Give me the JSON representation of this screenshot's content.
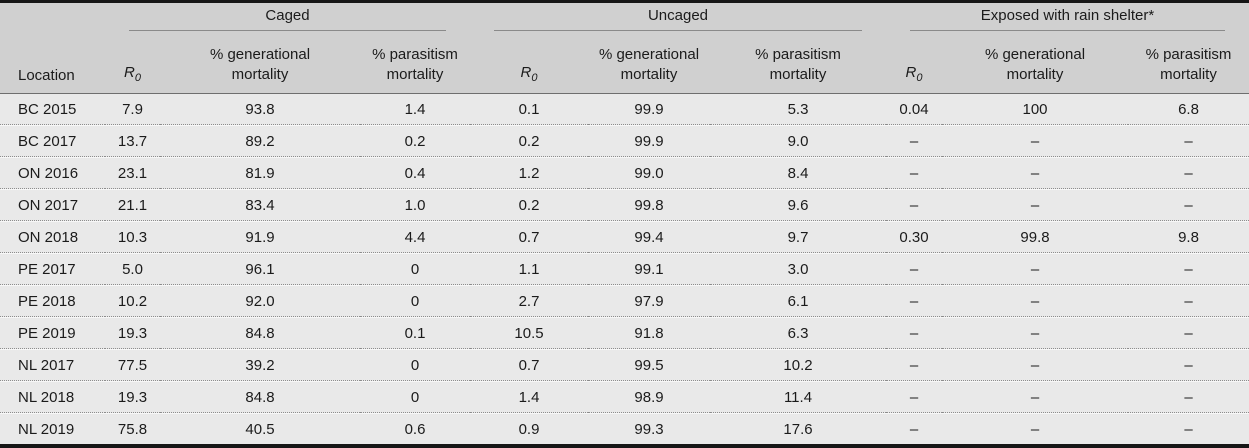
{
  "table": {
    "location_header": "Location",
    "r0_label": {
      "base": "R",
      "sub": "0"
    },
    "groups": [
      {
        "label": "Caged"
      },
      {
        "label": "Uncaged"
      },
      {
        "label": "Exposed with rain shelter*"
      }
    ],
    "subheaders": {
      "gen_line1": "% generational",
      "gen_line2": "mortality",
      "para_line1": "% parasitism",
      "para_line2": "mortality"
    },
    "rows": [
      {
        "location": "BC 2015",
        "caged": [
          "7.9",
          "93.8",
          "1.4"
        ],
        "uncaged": [
          "0.1",
          "99.9",
          "5.3"
        ],
        "exposed": [
          "0.04",
          "100",
          "6.8"
        ]
      },
      {
        "location": "BC 2017",
        "caged": [
          "13.7",
          "89.2",
          "0.2"
        ],
        "uncaged": [
          "0.2",
          "99.9",
          "9.0"
        ],
        "exposed": [
          "–",
          "–",
          "–"
        ]
      },
      {
        "location": "ON 2016",
        "caged": [
          "23.1",
          "81.9",
          "0.4"
        ],
        "uncaged": [
          "1.2",
          "99.0",
          "8.4"
        ],
        "exposed": [
          "–",
          "–",
          "–"
        ]
      },
      {
        "location": "ON 2017",
        "caged": [
          "21.1",
          "83.4",
          "1.0"
        ],
        "uncaged": [
          "0.2",
          "99.8",
          "9.6"
        ],
        "exposed": [
          "–",
          "–",
          "–"
        ]
      },
      {
        "location": "ON 2018",
        "caged": [
          "10.3",
          "91.9",
          "4.4"
        ],
        "uncaged": [
          "0.7",
          "99.4",
          "9.7"
        ],
        "exposed": [
          "0.30",
          "99.8",
          "9.8"
        ]
      },
      {
        "location": "PE 2017",
        "caged": [
          "5.0",
          "96.1",
          "0"
        ],
        "uncaged": [
          "1.1",
          "99.1",
          "3.0"
        ],
        "exposed": [
          "–",
          "–",
          "–"
        ]
      },
      {
        "location": "PE 2018",
        "caged": [
          "10.2",
          "92.0",
          "0"
        ],
        "uncaged": [
          "2.7",
          "97.9",
          "6.1"
        ],
        "exposed": [
          "–",
          "–",
          "–"
        ]
      },
      {
        "location": "PE 2019",
        "caged": [
          "19.3",
          "84.8",
          "0.1"
        ],
        "uncaged": [
          "10.5",
          "91.8",
          "6.3"
        ],
        "exposed": [
          "–",
          "–",
          "–"
        ]
      },
      {
        "location": "NL 2017",
        "caged": [
          "77.5",
          "39.2",
          "0"
        ],
        "uncaged": [
          "0.7",
          "99.5",
          "10.2"
        ],
        "exposed": [
          "–",
          "–",
          "–"
        ]
      },
      {
        "location": "NL 2018",
        "caged": [
          "19.3",
          "84.8",
          "0"
        ],
        "uncaged": [
          "1.4",
          "98.9",
          "11.4"
        ],
        "exposed": [
          "–",
          "–",
          "–"
        ]
      },
      {
        "location": "NL 2019",
        "caged": [
          "75.8",
          "40.5",
          "0.6"
        ],
        "uncaged": [
          "0.9",
          "99.3",
          "17.6"
        ],
        "exposed": [
          "–",
          "–",
          "–"
        ]
      }
    ],
    "colors": {
      "header_bg": "#d0d0d0",
      "row_bg": "#e9e9e9",
      "rule_dark": "#161616",
      "rule_mid": "#6e6e6e",
      "rule_dotted": "#8d8d8d"
    }
  }
}
